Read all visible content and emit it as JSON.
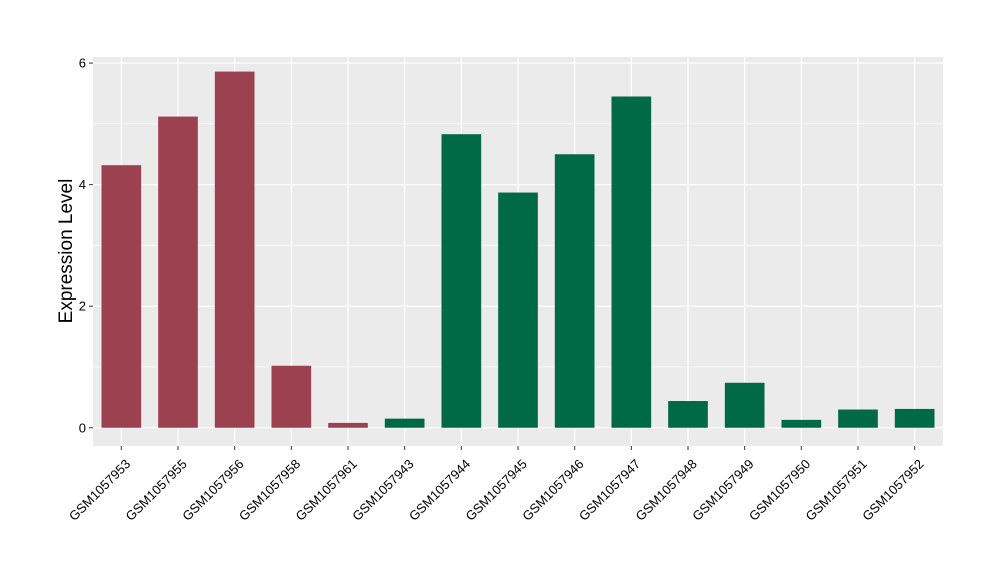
{
  "chart_data": {
    "type": "bar",
    "title": "",
    "xlabel": "",
    "ylabel": "Expression Level",
    "ylim": [
      -0.3,
      6.1
    ],
    "yticks": [
      0,
      2,
      4,
      6
    ],
    "grid": true,
    "categories": [
      "GSM1057953",
      "GSM1057955",
      "GSM1057956",
      "GSM1057958",
      "GSM1057961",
      "GSM1057943",
      "GSM1057944",
      "GSM1057945",
      "GSM1057946",
      "GSM1057947",
      "GSM1057948",
      "GSM1057949",
      "GSM1057950",
      "GSM1057951",
      "GSM1057952"
    ],
    "values": [
      4.32,
      5.12,
      5.86,
      1.02,
      0.08,
      0.15,
      4.83,
      3.87,
      4.5,
      5.45,
      0.44,
      0.74,
      0.13,
      0.3,
      0.31
    ],
    "bar_colors": [
      "#9b4150",
      "#9b4150",
      "#9b4150",
      "#9b4150",
      "#9b4150",
      "#006946",
      "#006946",
      "#006946",
      "#006946",
      "#006946",
      "#006946",
      "#006946",
      "#006946",
      "#006946",
      "#006946"
    ],
    "panel_background": "#ebebeb",
    "grid_color": "#ffffff"
  }
}
